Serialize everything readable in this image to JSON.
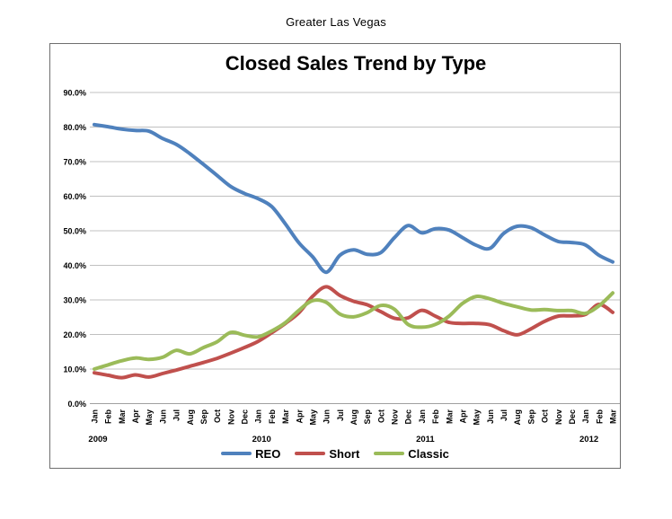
{
  "page": {
    "header": "Greater Las Vegas"
  },
  "chart": {
    "title": "Closed Sales Trend by Type"
  },
  "chart_data": {
    "type": "line",
    "title": "Closed Sales Trend by Type",
    "subtitle": "Greater Las Vegas",
    "xlabel": "",
    "ylabel": "",
    "ylim": [
      0,
      90
    ],
    "y_tick_step": 10,
    "y_tick_labels": [
      "0.0%",
      "10.0%",
      "20.0%",
      "30.0%",
      "40.0%",
      "50.0%",
      "60.0%",
      "70.0%",
      "80.0%",
      "90.0%"
    ],
    "grid": "horizontal",
    "legend_position": "bottom",
    "smoothed_lines": true,
    "x": [
      {
        "m": "Jan",
        "year": "2009"
      },
      {
        "m": "Feb"
      },
      {
        "m": "Mar"
      },
      {
        "m": "Apr"
      },
      {
        "m": "May"
      },
      {
        "m": "Jun"
      },
      {
        "m": "Jul"
      },
      {
        "m": "Aug"
      },
      {
        "m": "Sep"
      },
      {
        "m": "Oct"
      },
      {
        "m": "Nov"
      },
      {
        "m": "Dec"
      },
      {
        "m": "Jan",
        "year": "2010"
      },
      {
        "m": "Feb"
      },
      {
        "m": "Mar"
      },
      {
        "m": "Apr"
      },
      {
        "m": "May"
      },
      {
        "m": "Jun"
      },
      {
        "m": "Jul"
      },
      {
        "m": "Aug"
      },
      {
        "m": "Sep"
      },
      {
        "m": "Oct"
      },
      {
        "m": "Nov"
      },
      {
        "m": "Dec"
      },
      {
        "m": "Jan",
        "year": "2011"
      },
      {
        "m": "Feb"
      },
      {
        "m": "Mar"
      },
      {
        "m": "Apr"
      },
      {
        "m": "May"
      },
      {
        "m": "Jun"
      },
      {
        "m": "Jul"
      },
      {
        "m": "Aug"
      },
      {
        "m": "Sep"
      },
      {
        "m": "Oct"
      },
      {
        "m": "Nov"
      },
      {
        "m": "Dec"
      },
      {
        "m": "Jan",
        "year": "2012"
      },
      {
        "m": "Feb"
      },
      {
        "m": "Mar"
      }
    ],
    "series": [
      {
        "name": "REO",
        "color": "#4F81BD",
        "values": [
          80.7,
          80.1,
          79.4,
          79.0,
          78.8,
          76.7,
          75.0,
          72.3,
          69.2,
          66.0,
          62.8,
          60.8,
          59.3,
          57.0,
          52.0,
          46.5,
          42.5,
          38.0,
          42.9,
          44.5,
          43.2,
          43.7,
          48.0,
          51.5,
          49.4,
          50.6,
          50.2,
          48.0,
          45.8,
          44.9,
          49.2,
          51.3,
          50.9,
          48.8,
          46.9,
          46.6,
          45.9,
          42.9,
          41.0
        ]
      },
      {
        "name": "Short",
        "color": "#C0504D",
        "values": [
          8.9,
          8.2,
          7.5,
          8.3,
          7.7,
          8.7,
          9.7,
          10.8,
          11.9,
          13.1,
          14.6,
          16.2,
          18.0,
          20.5,
          23.2,
          26.3,
          31.0,
          33.8,
          31.3,
          29.6,
          28.6,
          26.6,
          24.7,
          24.8,
          27.0,
          25.3,
          23.5,
          23.2,
          23.2,
          22.8,
          21.1,
          19.9,
          21.6,
          23.8,
          25.3,
          25.4,
          25.8,
          28.7,
          26.4
        ]
      },
      {
        "name": "Classic",
        "color": "#9BBB59",
        "values": [
          10.0,
          11.2,
          12.4,
          13.2,
          12.8,
          13.4,
          15.4,
          14.4,
          16.2,
          17.9,
          20.6,
          19.8,
          19.3,
          21.0,
          23.4,
          27.0,
          29.8,
          29.3,
          25.9,
          25.1,
          26.3,
          28.4,
          27.3,
          22.9,
          22.1,
          22.9,
          25.3,
          29.0,
          31.0,
          30.3,
          29.0,
          28.0,
          27.1,
          27.2,
          26.9,
          26.9,
          26.1,
          28.3,
          32.0
        ]
      }
    ]
  }
}
